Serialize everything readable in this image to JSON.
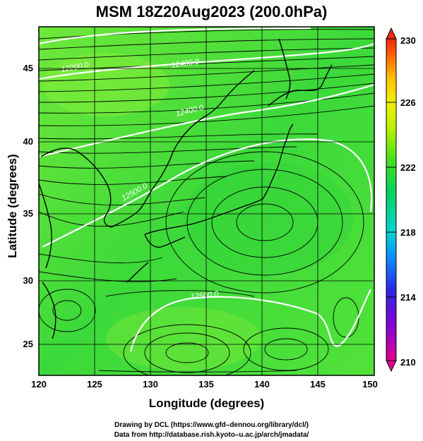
{
  "title": "MSM 18Z20Aug2023 (200.0hPa)",
  "axes": {
    "xlabel": "Longitude (degrees)",
    "ylabel": "Latitude  (degrees)",
    "xticks": [
      "120",
      "125",
      "130",
      "135",
      "140",
      "145",
      "150"
    ],
    "yticks": [
      "25",
      "30",
      "35",
      "40",
      "45"
    ],
    "xrange": [
      120,
      150
    ],
    "yrange": [
      22.5,
      47.8
    ]
  },
  "colorbar": {
    "ticks": [
      "230",
      "226",
      "222",
      "218",
      "214",
      "210"
    ],
    "range": [
      210,
      230
    ],
    "colors": [
      "#e0008c",
      "#8a00d0",
      "#2a28e0",
      "#0c8cff",
      "#00d4d0",
      "#00d060",
      "#40e020",
      "#b8f000",
      "#f0f000",
      "#ffc000",
      "#ff6000",
      "#f02818"
    ]
  },
  "contours": {
    "labels": [
      "12200.0",
      "12400.0",
      "12400.0",
      "12500.0",
      "12500.0"
    ]
  },
  "credits": {
    "line1": "Drawing by DCL (https://www.gfd–dennou.org/library/dcl/)",
    "line2": "Data from http://database.rish.kyoto–u.ac.jp/arch/jmadata/"
  },
  "colors": {
    "field": "#3cd93a",
    "field_light": "#86f03a",
    "contour": "#ffffff",
    "coast": "#000000"
  }
}
